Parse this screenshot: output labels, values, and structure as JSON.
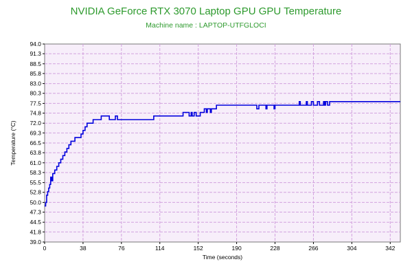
{
  "chart_data": {
    "type": "line",
    "title": "NVIDIA GeForce RTX 3070 Laptop GPU GPU Temperature",
    "subtitle": "Machine name : LAPTOP-UTFGLOCI",
    "xlabel": "Time (seconds)",
    "ylabel": "Temperature (°C)",
    "xlim": [
      0,
      352
    ],
    "ylim": [
      39.0,
      94.0
    ],
    "x_ticks": [
      0,
      38,
      76,
      114,
      152,
      190,
      228,
      266,
      304,
      342
    ],
    "y_ticks": [
      39.0,
      41.8,
      44.5,
      47.3,
      50.0,
      52.8,
      55.5,
      58.3,
      61.0,
      63.8,
      66.5,
      69.3,
      72.0,
      74.8,
      77.5,
      80.3,
      83.0,
      85.8,
      88.5,
      91.3,
      94.0
    ],
    "grid": true,
    "colors": {
      "line": "#0000dd",
      "plot_bg": "#f7eefa",
      "grid": "#d2a2de",
      "title": "#2d9a2d"
    },
    "series": [
      {
        "points": [
          [
            0,
            49
          ],
          [
            1,
            50
          ],
          [
            2,
            52
          ],
          [
            3,
            53
          ],
          [
            4,
            54
          ],
          [
            5,
            55
          ],
          [
            6,
            57
          ],
          [
            7,
            56
          ],
          [
            8,
            58
          ],
          [
            10,
            59
          ],
          [
            12,
            60
          ],
          [
            14,
            61
          ],
          [
            16,
            62
          ],
          [
            18,
            63
          ],
          [
            20,
            64
          ],
          [
            22,
            65
          ],
          [
            24,
            66
          ],
          [
            26,
            67
          ],
          [
            28,
            67
          ],
          [
            30,
            68
          ],
          [
            34,
            68
          ],
          [
            36,
            69
          ],
          [
            38,
            70
          ],
          [
            40,
            71
          ],
          [
            42,
            72
          ],
          [
            46,
            72
          ],
          [
            48,
            73
          ],
          [
            53,
            73
          ],
          [
            54,
            73
          ],
          [
            56,
            74
          ],
          [
            62,
            74
          ],
          [
            64,
            73
          ],
          [
            68,
            73
          ],
          [
            70,
            74
          ],
          [
            72,
            73
          ],
          [
            107,
            73
          ],
          [
            108,
            74
          ],
          [
            136,
            74
          ],
          [
            137,
            75
          ],
          [
            142,
            75
          ],
          [
            143,
            74
          ],
          [
            145,
            75
          ],
          [
            146,
            74
          ],
          [
            148,
            75
          ],
          [
            150,
            74
          ],
          [
            154,
            75
          ],
          [
            155,
            75
          ],
          [
            158,
            76
          ],
          [
            160,
            75
          ],
          [
            161,
            76
          ],
          [
            164,
            75
          ],
          [
            165,
            76
          ],
          [
            168,
            76
          ],
          [
            170,
            77
          ],
          [
            208,
            77
          ],
          [
            210,
            76
          ],
          [
            212,
            77
          ],
          [
            218,
            77
          ],
          [
            219,
            76
          ],
          [
            220,
            77
          ],
          [
            226,
            77
          ],
          [
            227,
            76
          ],
          [
            228,
            77
          ],
          [
            250,
            77
          ],
          [
            252,
            78
          ],
          [
            253,
            77
          ],
          [
            258,
            77
          ],
          [
            259,
            78
          ],
          [
            260,
            77
          ],
          [
            263,
            77
          ],
          [
            264,
            78
          ],
          [
            266,
            77
          ],
          [
            270,
            78
          ],
          [
            272,
            77
          ],
          [
            276,
            78
          ],
          [
            277,
            77
          ],
          [
            278,
            78
          ],
          [
            280,
            77
          ],
          [
            282,
            78
          ],
          [
            288,
            78
          ],
          [
            352,
            78
          ]
        ]
      }
    ]
  }
}
